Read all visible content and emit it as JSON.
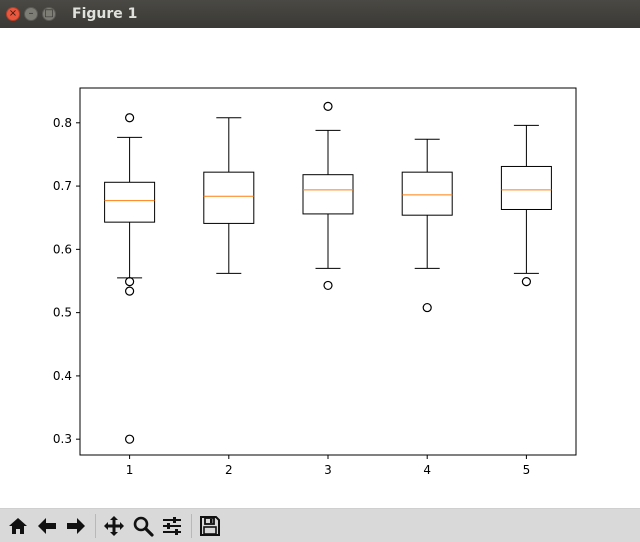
{
  "window": {
    "title": "Figure 1",
    "controls": {
      "close": "×",
      "minimize": "–",
      "maximize": "□"
    }
  },
  "toolbar": {
    "buttons": [
      {
        "icon": "home-icon"
      },
      {
        "icon": "back-arrow-icon"
      },
      {
        "icon": "forward-arrow-icon"
      },
      {
        "icon": "pan-icon"
      },
      {
        "icon": "zoom-icon"
      },
      {
        "icon": "subplots-config-icon"
      },
      {
        "icon": "save-icon"
      }
    ]
  },
  "chart_data": {
    "type": "box",
    "title": "",
    "xlabel": "",
    "ylabel": "",
    "categories": [
      "1",
      "2",
      "3",
      "4",
      "5"
    ],
    "ylim": [
      0.275,
      0.855
    ],
    "yticks": [
      0.3,
      0.4,
      0.5,
      0.6,
      0.7,
      0.8
    ],
    "ytick_labels": [
      "0.3",
      "0.4",
      "0.5",
      "0.6",
      "0.7",
      "0.8"
    ],
    "boxes": [
      {
        "label": "1",
        "whisker_low": 0.555,
        "q1": 0.643,
        "median": 0.677,
        "q3": 0.706,
        "whisker_high": 0.777,
        "outliers": [
          0.808,
          0.549,
          0.534,
          0.3
        ]
      },
      {
        "label": "2",
        "whisker_low": 0.562,
        "q1": 0.641,
        "median": 0.684,
        "q3": 0.722,
        "whisker_high": 0.808,
        "outliers": []
      },
      {
        "label": "3",
        "whisker_low": 0.57,
        "q1": 0.656,
        "median": 0.694,
        "q3": 0.718,
        "whisker_high": 0.788,
        "outliers": [
          0.826,
          0.543
        ]
      },
      {
        "label": "4",
        "whisker_low": 0.57,
        "q1": 0.654,
        "median": 0.686,
        "q3": 0.722,
        "whisker_high": 0.774,
        "outliers": [
          0.508
        ]
      },
      {
        "label": "5",
        "whisker_low": 0.562,
        "q1": 0.663,
        "median": 0.694,
        "q3": 0.731,
        "whisker_high": 0.796,
        "outliers": [
          0.549
        ]
      }
    ],
    "grid": false,
    "colors": {
      "box": "#000000",
      "median": "#ff7f0e",
      "outlier": "#000000"
    }
  }
}
